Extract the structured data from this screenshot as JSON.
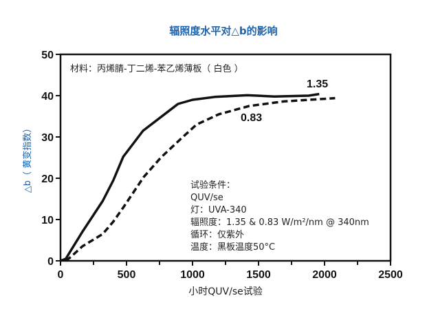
{
  "chart_data": {
    "type": "line",
    "title": "辐照度水平对△b的影响",
    "xlabel": "小时QUV/se试验",
    "ylabel": "△b（ 黄变指数）",
    "xlim": [
      0,
      2500
    ],
    "ylim": [
      0,
      50
    ],
    "xticks": [
      "0",
      "500",
      "1000",
      "1500",
      "2000",
      "2500"
    ],
    "yticks": [
      "0",
      "10",
      "20",
      "30",
      "40",
      "50"
    ],
    "grid": false,
    "material_note": "材料：丙烯腈-丁二烯-苯乙烯薄板（ 白色 ）",
    "conditions": [
      "试验条件：",
      "QUV/se",
      "灯：UVA-340",
      "辐照度：1.35 & 0.83 W/m²/nm @ 340nm",
      "循环：仅紫外",
      "温度：黑板温度50°C"
    ],
    "series": [
      {
        "name": "1.35",
        "style": "solid",
        "x": [
          0,
          40,
          80,
          165,
          320,
          400,
          475,
          625,
          890,
          1000,
          1170,
          1415,
          1620,
          1880,
          1960
        ],
        "y": [
          0,
          0.5,
          2.6,
          7,
          14.5,
          19.5,
          25.2,
          31.5,
          38,
          39,
          39.7,
          40.1,
          39.8,
          40,
          40.4
        ]
      },
      {
        "name": "0.83",
        "style": "dashed",
        "x": [
          40,
          80,
          165,
          320,
          400,
          475,
          630,
          760,
          910,
          1030,
          1200,
          1430,
          1690,
          2080
        ],
        "y": [
          0,
          1,
          3.5,
          6.5,
          9.5,
          12.9,
          20.3,
          25,
          29.5,
          33,
          35.5,
          37.5,
          38.6,
          39.4
        ]
      }
    ]
  }
}
